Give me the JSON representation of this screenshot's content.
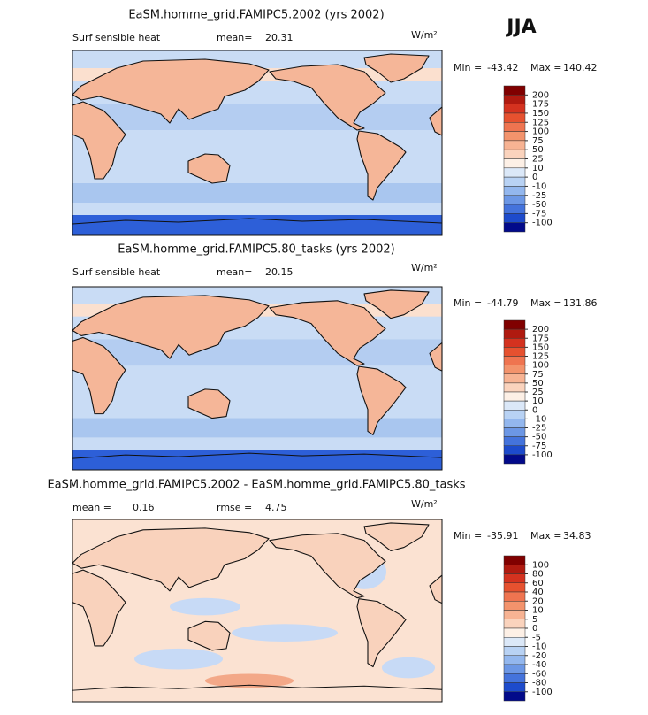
{
  "season": "JJA",
  "panels": [
    {
      "title": "EaSM.homme_grid.FAMIPC5.2002 (yrs 2002)",
      "field": "Surf sensible heat",
      "stats": [
        {
          "label": "mean=",
          "value": 20.31
        }
      ],
      "units": "W/m²",
      "min_label": "Min =",
      "min": -43.42,
      "max_label": "Max =",
      "max": 140.42,
      "levels": [
        200,
        175,
        150,
        125,
        100,
        75,
        50,
        25,
        10,
        0,
        -10,
        -25,
        -50,
        -75,
        -100
      ],
      "colors": [
        "#800000",
        "#b01a10",
        "#d4321f",
        "#e6512f",
        "#ef7450",
        "#f3936c",
        "#f7b393",
        "#fad3bd",
        "#fdf0e6",
        "#dbe8f8",
        "#b8d2f4",
        "#93b7ee",
        "#6c97e5",
        "#4473dc",
        "#1d4bcc",
        "#020a8a"
      ]
    },
    {
      "title": "EaSM.homme_grid.FAMIPC5.80_tasks (yrs 2002)",
      "field": "Surf sensible heat",
      "stats": [
        {
          "label": "mean=",
          "value": 20.15
        }
      ],
      "units": "W/m²",
      "min_label": "Min =",
      "min": -44.79,
      "max_label": "Max =",
      "max": 131.86,
      "levels": [
        200,
        175,
        150,
        125,
        100,
        75,
        50,
        25,
        10,
        0,
        -10,
        -25,
        -50,
        -75,
        -100
      ],
      "colors": [
        "#800000",
        "#b01a10",
        "#d4321f",
        "#e6512f",
        "#ef7450",
        "#f3936c",
        "#f7b393",
        "#fad3bd",
        "#fdf0e6",
        "#dbe8f8",
        "#b8d2f4",
        "#93b7ee",
        "#6c97e5",
        "#4473dc",
        "#1d4bcc",
        "#020a8a"
      ]
    },
    {
      "title": "EaSM.homme_grid.FAMIPC5.2002 - EaSM.homme_grid.FAMIPC5.80_tasks",
      "stats": [
        {
          "label": "mean =",
          "value": 0.16
        },
        {
          "label": "rmse =",
          "value": 4.75
        }
      ],
      "units": "W/m²",
      "min_label": "Min =",
      "min": -35.91,
      "max_label": "Max =",
      "max": 34.83,
      "levels": [
        100,
        80,
        60,
        40,
        20,
        10,
        5,
        0,
        -5,
        -10,
        -20,
        -40,
        -60,
        -80,
        -100
      ],
      "colors": [
        "#800000",
        "#b01a10",
        "#d4321f",
        "#e6512f",
        "#ef7450",
        "#f3936c",
        "#f7b393",
        "#fad3bd",
        "#fdf0e6",
        "#dbe8f8",
        "#b8d2f4",
        "#93b7ee",
        "#6c97e5",
        "#4473dc",
        "#1d4bcc",
        "#020a8a"
      ]
    }
  ]
}
